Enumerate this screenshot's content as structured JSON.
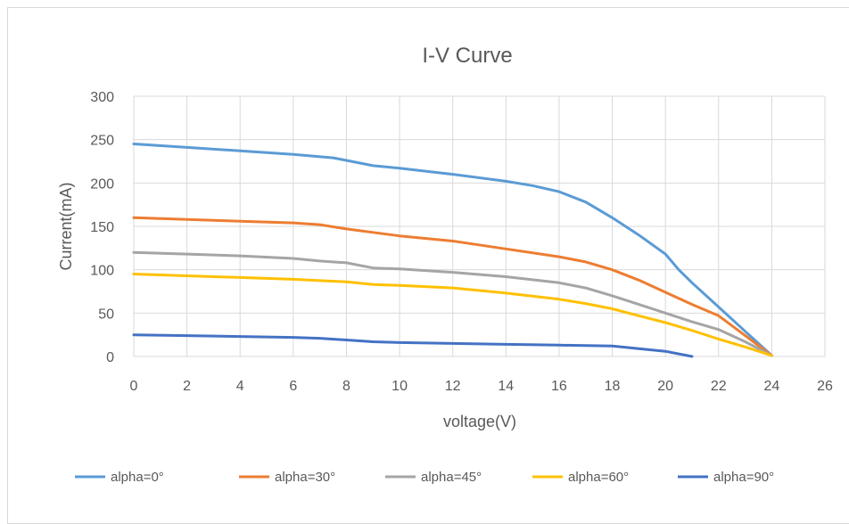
{
  "chart_data": {
    "type": "line",
    "title": "I-V Curve",
    "xlabel": "voltage(V)",
    "ylabel": "Current(mA)",
    "xlim": [
      0,
      26
    ],
    "ylim": [
      0,
      300
    ],
    "xticks": [
      0,
      2,
      4,
      6,
      8,
      10,
      12,
      14,
      16,
      18,
      20,
      22,
      24,
      26
    ],
    "yticks": [
      0,
      50,
      100,
      150,
      200,
      250,
      300
    ],
    "grid": true,
    "legend_position": "bottom",
    "series": [
      {
        "name": "alpha=0°",
        "color": "#5b9bd5",
        "points": [
          [
            0,
            245
          ],
          [
            2,
            241
          ],
          [
            4,
            237
          ],
          [
            6,
            233
          ],
          [
            7.5,
            229
          ],
          [
            8,
            226
          ],
          [
            9,
            220
          ],
          [
            10,
            217
          ],
          [
            12,
            210
          ],
          [
            14,
            202
          ],
          [
            15,
            197
          ],
          [
            16,
            190
          ],
          [
            17,
            178
          ],
          [
            18,
            160
          ],
          [
            19,
            140
          ],
          [
            20,
            118
          ],
          [
            20.5,
            100
          ],
          [
            21,
            85
          ],
          [
            22,
            57
          ],
          [
            23,
            29
          ],
          [
            24,
            1
          ]
        ]
      },
      {
        "name": "alpha=30°",
        "color": "#ed7d31",
        "points": [
          [
            0,
            160
          ],
          [
            2,
            158
          ],
          [
            4,
            156
          ],
          [
            6,
            154
          ],
          [
            7,
            152
          ],
          [
            8,
            147
          ],
          [
            9,
            143
          ],
          [
            10,
            139
          ],
          [
            12,
            133
          ],
          [
            14,
            124
          ],
          [
            16,
            115
          ],
          [
            17,
            109
          ],
          [
            18,
            100
          ],
          [
            19,
            88
          ],
          [
            20,
            74
          ],
          [
            21,
            60
          ],
          [
            22,
            47
          ],
          [
            23,
            24
          ],
          [
            24,
            1
          ]
        ]
      },
      {
        "name": "alpha=45°",
        "color": "#a5a5a5",
        "points": [
          [
            0,
            120
          ],
          [
            2,
            118
          ],
          [
            4,
            116
          ],
          [
            6,
            113
          ],
          [
            7,
            110
          ],
          [
            8,
            108
          ],
          [
            9,
            102
          ],
          [
            10,
            101
          ],
          [
            12,
            97
          ],
          [
            14,
            92
          ],
          [
            16,
            85
          ],
          [
            17,
            79
          ],
          [
            18,
            70
          ],
          [
            19,
            60
          ],
          [
            20,
            50
          ],
          [
            21,
            40
          ],
          [
            22,
            31
          ],
          [
            23,
            17
          ],
          [
            24,
            1
          ]
        ]
      },
      {
        "name": "alpha=60°",
        "color": "#ffc000",
        "points": [
          [
            0,
            95
          ],
          [
            2,
            93
          ],
          [
            4,
            91
          ],
          [
            6,
            89
          ],
          [
            8,
            86
          ],
          [
            9,
            83
          ],
          [
            10,
            82
          ],
          [
            12,
            79
          ],
          [
            14,
            73
          ],
          [
            16,
            66
          ],
          [
            17,
            61
          ],
          [
            18,
            55
          ],
          [
            19,
            47
          ],
          [
            20,
            39
          ],
          [
            21,
            30
          ],
          [
            22,
            20
          ],
          [
            23,
            11
          ],
          [
            24,
            1
          ]
        ]
      },
      {
        "name": "alpha=90°",
        "color": "#4472c4",
        "points": [
          [
            0,
            25
          ],
          [
            2,
            24
          ],
          [
            4,
            23
          ],
          [
            6,
            22
          ],
          [
            7,
            21
          ],
          [
            8,
            19
          ],
          [
            9,
            17
          ],
          [
            10,
            16
          ],
          [
            12,
            15
          ],
          [
            14,
            14
          ],
          [
            16,
            13
          ],
          [
            18,
            12
          ],
          [
            19,
            9
          ],
          [
            20,
            6
          ],
          [
            20.5,
            3
          ],
          [
            21,
            0
          ]
        ]
      }
    ]
  }
}
